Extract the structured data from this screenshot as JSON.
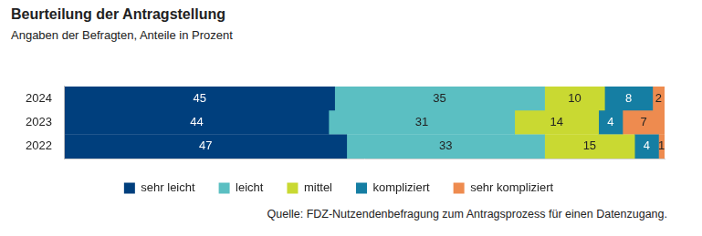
{
  "chart_data": {
    "type": "bar",
    "title": "Beurteilung der Antragstellung",
    "subtitle": "Angaben der Befragten, Anteile in Prozent",
    "source": "Quelle: FDZ-Nutzendenbefragung zum Antragsprozess für einen Datenzugang.",
    "orientation": "horizontal",
    "stacked": true,
    "data_labels": true,
    "legend": "bottom",
    "tick_labels": "y",
    "grid": false,
    "categories": [
      "2024",
      "2023",
      "2022"
    ],
    "xlim": [
      0,
      100
    ],
    "series": [
      {
        "name": "sehr leicht",
        "color": "#003f7d",
        "values": [
          45,
          44,
          47
        ]
      },
      {
        "name": "leicht",
        "color": "#5bbfc2",
        "values": [
          35,
          31,
          33
        ]
      },
      {
        "name": "mittel",
        "color": "#c9d932",
        "values": [
          10,
          14,
          15
        ]
      },
      {
        "name": "kompliziert",
        "color": "#157ea3",
        "values": [
          8,
          4,
          4
        ]
      },
      {
        "name": "sehr kompliziert",
        "color": "#ee8b4f",
        "values": [
          2,
          7,
          1
        ]
      }
    ]
  }
}
